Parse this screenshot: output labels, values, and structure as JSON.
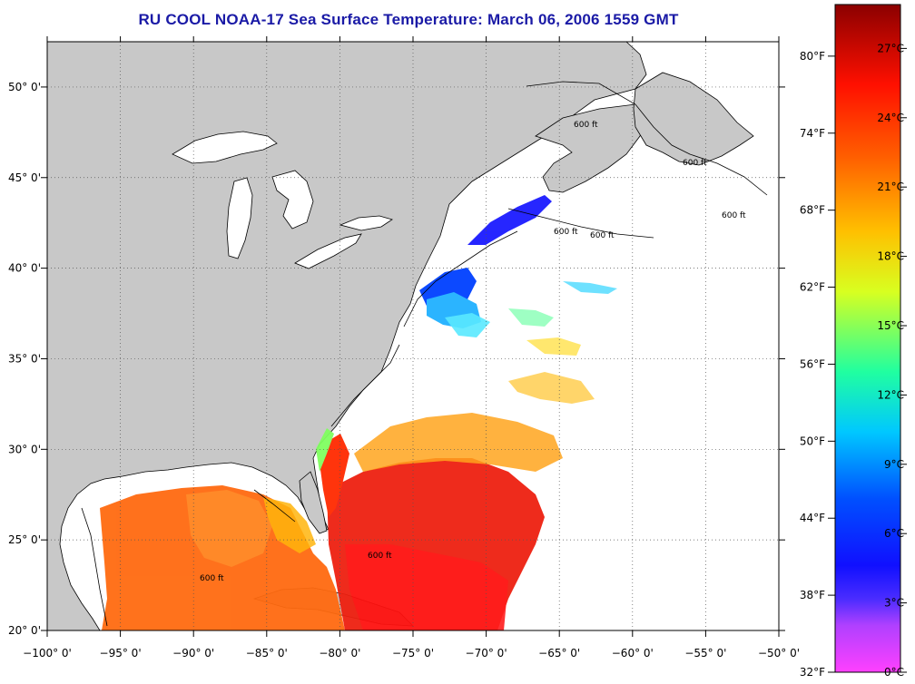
{
  "title": "RU COOL  NOAA-17  Sea Surface Temperature:  March 06, 2006 1559 GMT",
  "map": {
    "lon_ticks": [
      {
        "value": -100,
        "label": "−100° 0'"
      },
      {
        "value": -95,
        "label": "−95° 0'"
      },
      {
        "value": -90,
        "label": "−90° 0'"
      },
      {
        "value": -85,
        "label": "−85° 0'"
      },
      {
        "value": -80,
        "label": "−80° 0'"
      },
      {
        "value": -75,
        "label": "−75° 0'"
      },
      {
        "value": -70,
        "label": "−70° 0'"
      },
      {
        "value": -65,
        "label": "−65° 0'"
      },
      {
        "value": -60,
        "label": "−60° 0'"
      },
      {
        "value": -55,
        "label": "−55° 0'"
      },
      {
        "value": -50,
        "label": "−50° 0'"
      }
    ],
    "lat_ticks": [
      {
        "value": 20,
        "label": "20° 0'"
      },
      {
        "value": 25,
        "label": "25° 0'"
      },
      {
        "value": 30,
        "label": "30° 0'"
      },
      {
        "value": 35,
        "label": "35° 0'"
      },
      {
        "value": 40,
        "label": "40° 0'"
      },
      {
        "value": 45,
        "label": "45° 0'"
      },
      {
        "value": 50,
        "label": "50° 0'"
      }
    ],
    "lon_range": [
      -100,
      -50
    ],
    "lat_range": [
      20,
      52.5
    ],
    "contour_label": "600 ft",
    "colors": {
      "land": "#c8c8c8",
      "water": "#ffffff",
      "coast": "#000000"
    }
  },
  "colorbar": {
    "fahrenheit_labels": [
      "80°F",
      "74°F",
      "68°F",
      "62°F",
      "56°F",
      "50°F",
      "44°F",
      "38°F",
      "32°F"
    ],
    "celsius_labels": [
      "27°C",
      "24°C",
      "21°C",
      "18°C",
      "15°C",
      "12°C",
      "9°C",
      "6°C",
      "3°C",
      "0°C"
    ],
    "fahrenheit_values": [
      80,
      74,
      68,
      62,
      56,
      50,
      44,
      38,
      32
    ],
    "celsius_values": [
      27,
      24,
      21,
      18,
      15,
      12,
      9,
      6,
      3,
      0
    ],
    "range_c": [
      0,
      28.9
    ],
    "gradient": [
      "#ff40ff",
      "#8a2be2",
      "#1a1aff",
      "#0060ff",
      "#00d0ff",
      "#40ff90",
      "#e0ff20",
      "#ffb000",
      "#ff3000",
      "#cc0000",
      "#8b0000"
    ]
  }
}
